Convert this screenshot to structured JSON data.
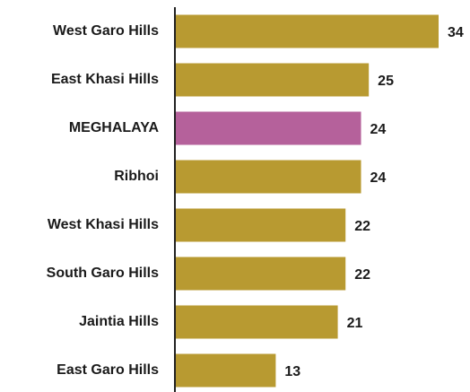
{
  "chart_data": {
    "type": "barh",
    "categories": [
      "West Garo Hills",
      "East Khasi Hills",
      "MEGHALAYA",
      "Ribhoi",
      "West Khasi Hills",
      "South Garo Hills",
      "Jaintia Hills",
      "East Garo Hills"
    ],
    "values": [
      34,
      25,
      24,
      24,
      22,
      22,
      21,
      13
    ],
    "colors": [
      "#b89a31",
      "#b89a31",
      "#b5619b",
      "#b89a31",
      "#b89a31",
      "#b89a31",
      "#b89a31",
      "#b89a31"
    ]
  }
}
